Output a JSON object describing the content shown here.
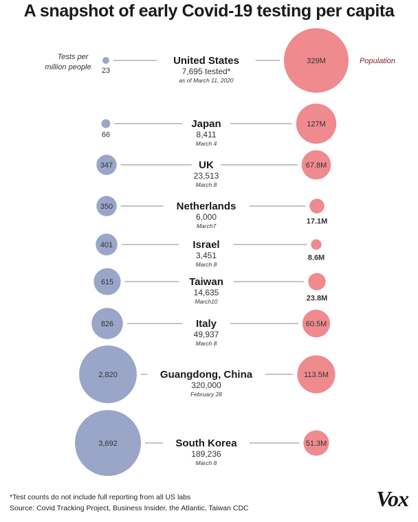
{
  "chart_data": {
    "type": "bubble",
    "title": "A snapshot of early Covid-19 testing per capita",
    "left_label": "Tests per million people",
    "right_label": "Population",
    "rows": [
      {
        "country": "United States",
        "tests_per_million": 23,
        "tests_label": "23",
        "tested": "7,695 tested*",
        "date": "as of March 11, 2020",
        "population_m": 329,
        "population_label": "329M"
      },
      {
        "country": "Japan",
        "tests_per_million": 66,
        "tests_label": "66",
        "tested": "8,411",
        "date": "March 4",
        "population_m": 127,
        "population_label": "127M"
      },
      {
        "country": "UK",
        "tests_per_million": 347,
        "tests_label": "347",
        "tested": "23,513",
        "date": "March 8",
        "population_m": 67.8,
        "population_label": "67.8M"
      },
      {
        "country": "Netherlands",
        "tests_per_million": 350,
        "tests_label": "350",
        "tested": "6,000",
        "date": "March7",
        "population_m": 17.1,
        "population_label": "17.1M"
      },
      {
        "country": "Israel",
        "tests_per_million": 401,
        "tests_label": "401",
        "tested": "3,451",
        "date": "March 8",
        "population_m": 8.6,
        "population_label": "8.6M"
      },
      {
        "country": "Taiwan",
        "tests_per_million": 615,
        "tests_label": "615",
        "tested": "14,635",
        "date": "March10",
        "population_m": 23.8,
        "population_label": "23.8M"
      },
      {
        "country": "Italy",
        "tests_per_million": 826,
        "tests_label": "826",
        "tested": "49,937",
        "date": "March 8",
        "population_m": 60.5,
        "population_label": "60.5M"
      },
      {
        "country": "Guangdong, China",
        "tests_per_million": 2820,
        "tests_label": "2,820",
        "tested": "320,000",
        "date": "February 28",
        "population_m": 113.5,
        "population_label": "113.5M"
      },
      {
        "country": "South Korea",
        "tests_per_million": 3692,
        "tests_label": "3,692",
        "tested": "189,236",
        "date": "March 8",
        "population_m": 51.3,
        "population_label": "51.3M"
      }
    ],
    "colors": {
      "tests": "#9aa6c8",
      "population": "#ef8a8f",
      "line": "#888888",
      "right_label": "#7a1f2b"
    }
  },
  "footnote": "*Test counts do not include full reporting from all US labs",
  "source": "Source: Covid Tracking Project, Business Insider, the Atlantic, Taiwan CDC",
  "logo": "Vox"
}
